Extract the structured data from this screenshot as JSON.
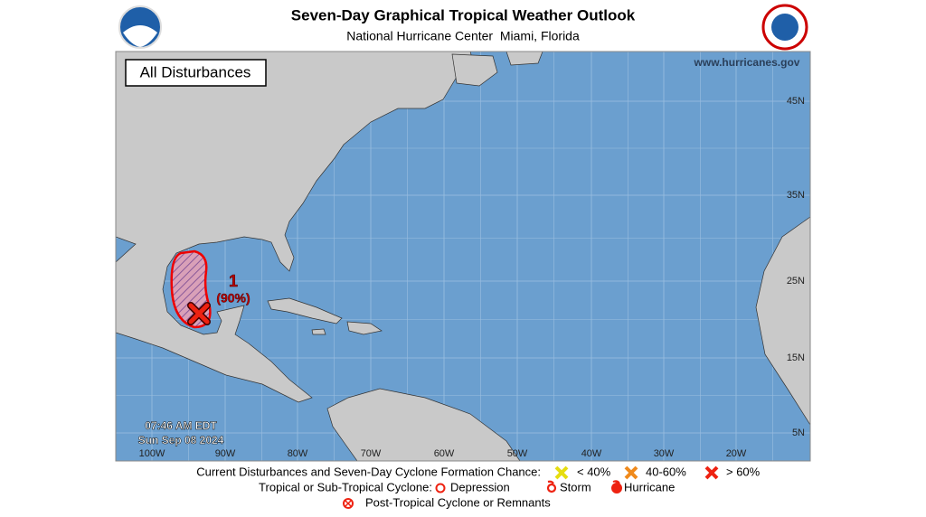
{
  "header": {
    "title": "Seven-Day Graphical Tropical Weather Outlook",
    "subtitle": "National Hurricane Center  Miami, Florida"
  },
  "map": {
    "panel_label": "All Disturbances",
    "website": "www.hurricanes.gov",
    "latitude_labels": [
      "45N",
      "35N",
      "25N",
      "15N",
      "5N"
    ],
    "longitude_labels": [
      "100W",
      "90W",
      "80W",
      "70W",
      "60W",
      "50W",
      "40W",
      "30W",
      "20W"
    ],
    "timestamp": {
      "time": "07:46 AM EDT",
      "date": "Sun Sep 08 2024"
    },
    "disturbances": [
      {
        "id": "1",
        "chance": "(90%)"
      }
    ]
  },
  "legend": {
    "formation": {
      "label": "Current Disturbances and Seven-Day Cyclone Formation Chance:",
      "low": "< 40%",
      "medium": "40-60%",
      "high": "> 60%"
    },
    "cyclone": {
      "label": "Tropical or Sub-Tropical Cyclone:",
      "depression": "Depression",
      "storm": "Storm",
      "hurricane": "Hurricane"
    },
    "post_tropical": "Post-Tropical Cyclone or Remnants"
  }
}
